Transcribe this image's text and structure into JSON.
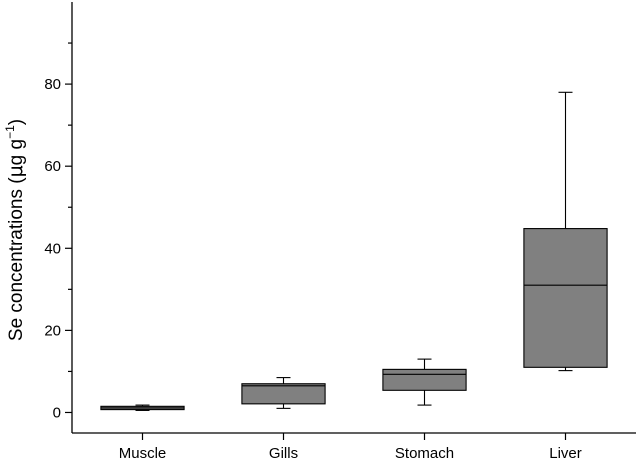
{
  "chart_data": {
    "type": "box",
    "ylabel_main": "Se concentrations (",
    "ylabel_unit_mu": "μ",
    "ylabel_unit_g": "g g",
    "ylabel_sup": "−1",
    "ylabel_close": ")",
    "ylim": [
      -5,
      100
    ],
    "yticks": [
      0,
      20,
      40,
      60,
      80
    ],
    "categories": [
      "Muscle",
      "Gills",
      "Stomach",
      "Liver"
    ],
    "boxes": [
      {
        "category": "Muscle",
        "min": 0.5,
        "q1": 0.7,
        "median": 1.1,
        "q3": 1.5,
        "max": 1.8
      },
      {
        "category": "Gills",
        "min": 1.0,
        "q1": 2.1,
        "median": 6.5,
        "q3": 7.0,
        "max": 8.5
      },
      {
        "category": "Stomach",
        "min": 1.8,
        "q1": 5.4,
        "median": 9.3,
        "q3": 10.5,
        "max": 13.0
      },
      {
        "category": "Liver",
        "min": 10.2,
        "q1": 11.0,
        "median": 31.0,
        "q3": 44.8,
        "max": 78.0
      }
    ],
    "box_fill": "#808080",
    "grid": false,
    "legend": "none"
  }
}
